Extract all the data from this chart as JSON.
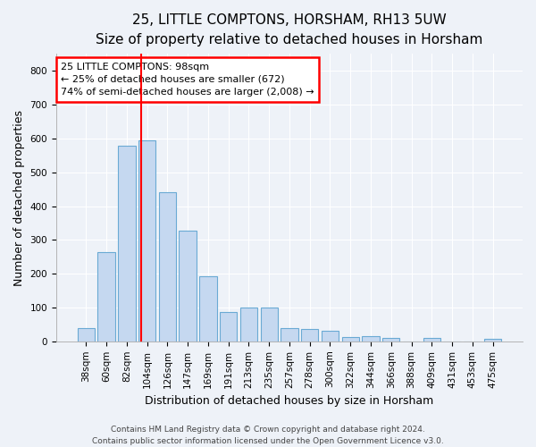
{
  "title1": "25, LITTLE COMPTONS, HORSHAM, RH13 5UW",
  "title2": "Size of property relative to detached houses in Horsham",
  "xlabel": "Distribution of detached houses by size in Horsham",
  "ylabel": "Number of detached properties",
  "categories": [
    "38sqm",
    "60sqm",
    "82sqm",
    "104sqm",
    "126sqm",
    "147sqm",
    "169sqm",
    "191sqm",
    "213sqm",
    "235sqm",
    "257sqm",
    "278sqm",
    "300sqm",
    "322sqm",
    "344sqm",
    "366sqm",
    "388sqm",
    "409sqm",
    "431sqm",
    "453sqm",
    "475sqm"
  ],
  "values": [
    38,
    265,
    578,
    594,
    442,
    327,
    192,
    88,
    100,
    100,
    38,
    37,
    32,
    14,
    15,
    10,
    0,
    10,
    0,
    0,
    8
  ],
  "bar_color": "#c5d8f0",
  "bar_edge_color": "#6aaad4",
  "annotation_text": "25 LITTLE COMPTONS: 98sqm\n← 25% of detached houses are smaller (672)\n74% of semi-detached houses are larger (2,008) →",
  "annotation_box_color": "white",
  "annotation_box_edge": "red",
  "vline_color": "red",
  "vline_x_index": 2.72,
  "ylim": [
    0,
    850
  ],
  "yticks": [
    0,
    100,
    200,
    300,
    400,
    500,
    600,
    700,
    800
  ],
  "footer1": "Contains HM Land Registry data © Crown copyright and database right 2024.",
  "footer2": "Contains public sector information licensed under the Open Government Licence v3.0.",
  "background_color": "#eef2f8",
  "plot_bg_color": "#eef2f8",
  "title1_fontsize": 11,
  "title2_fontsize": 10,
  "ylabel_fontsize": 9,
  "xlabel_fontsize": 9,
  "tick_fontsize": 7.5,
  "annotation_fontsize": 8,
  "footer_fontsize": 6.5
}
